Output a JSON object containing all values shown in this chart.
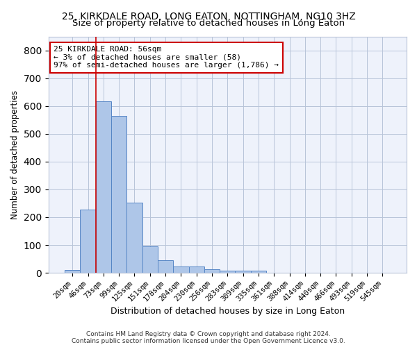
{
  "title": "25, KIRKDALE ROAD, LONG EATON, NOTTINGHAM, NG10 3HZ",
  "subtitle": "Size of property relative to detached houses in Long Eaton",
  "xlabel": "Distribution of detached houses by size in Long Eaton",
  "ylabel": "Number of detached properties",
  "categories": [
    "20sqm",
    "46sqm",
    "73sqm",
    "99sqm",
    "125sqm",
    "151sqm",
    "178sqm",
    "204sqm",
    "230sqm",
    "256sqm",
    "283sqm",
    "309sqm",
    "335sqm",
    "361sqm",
    "388sqm",
    "414sqm",
    "440sqm",
    "466sqm",
    "493sqm",
    "519sqm",
    "545sqm"
  ],
  "bar_values": [
    10,
    228,
    617,
    565,
    252,
    95,
    46,
    22,
    22,
    14,
    8,
    8,
    8,
    0,
    0,
    0,
    0,
    0,
    0,
    0,
    0
  ],
  "bar_color": "#aec6e8",
  "bar_edge_color": "#5585c5",
  "bg_color": "#eef2fb",
  "grid_color": "#b8c4d8",
  "vline_color": "#cc0000",
  "vline_x_index": 1.5,
  "annotation_text": "25 KIRKDALE ROAD: 56sqm\n← 3% of detached houses are smaller (58)\n97% of semi-detached houses are larger (1,786) →",
  "annotation_box_color": "#ffffff",
  "annotation_box_edge": "#cc0000",
  "footer": "Contains HM Land Registry data © Crown copyright and database right 2024.\nContains public sector information licensed under the Open Government Licence v3.0.",
  "ylim": [
    0,
    850
  ],
  "yticks": [
    0,
    100,
    200,
    300,
    400,
    500,
    600,
    700,
    800
  ],
  "title_fontsize": 10,
  "subtitle_fontsize": 9.5,
  "xlabel_fontsize": 9,
  "ylabel_fontsize": 8.5,
  "tick_fontsize": 7.5,
  "footer_fontsize": 6.5
}
